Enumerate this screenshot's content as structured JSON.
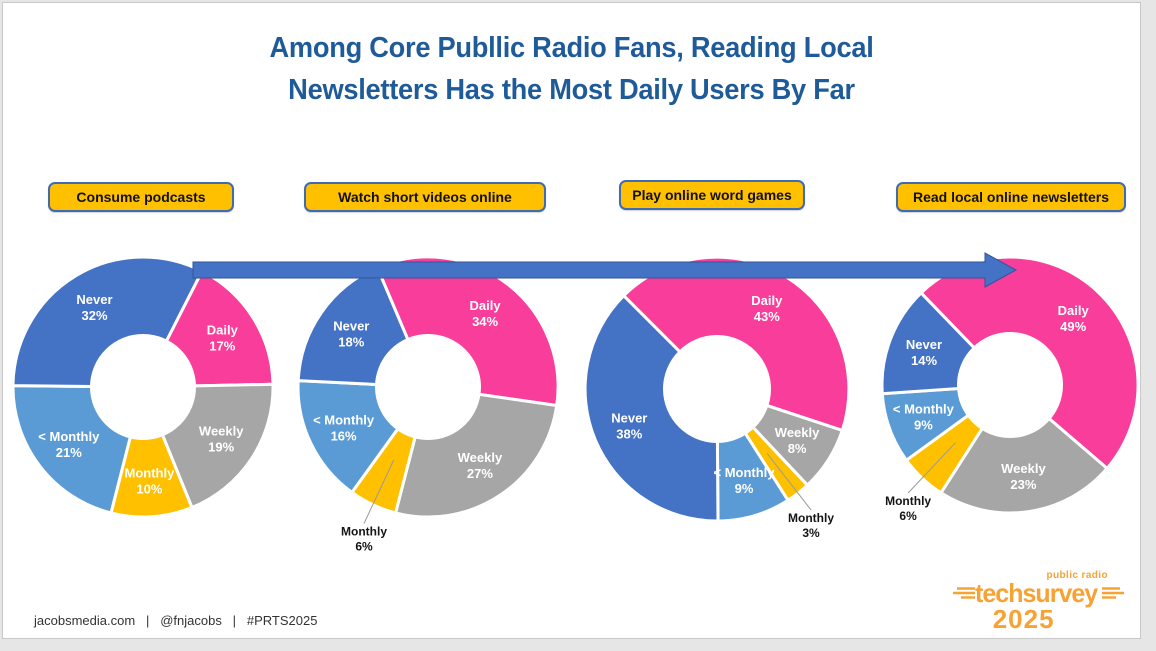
{
  "title": {
    "line1": "Among Core Publlic Radio Fans, Reading Local",
    "line2": "Newsletters Has the Most Daily Users By Far",
    "color": "#1F5B99"
  },
  "footer": {
    "text": "jacobsmedia.com   |   @fnjacobs   |   #PRTS2025"
  },
  "logo": {
    "tagline": "public radio",
    "brand": "techsurvey",
    "year": "2025",
    "color": "#F7A234"
  },
  "chart_data": {
    "type": "pie",
    "subtype": "donut",
    "legend_position": "none",
    "grid": false,
    "palette": {
      "Daily": "#F83E9A",
      "Weekly": "#A6A6A6",
      "Monthly": "#FFC000",
      "< Monthly": "#5B9BD5",
      "Never": "#4472C4"
    },
    "charts": [
      {
        "title": "Consume podcasts",
        "start_angle": 27,
        "slices": [
          {
            "label": "Daily",
            "pct": 17
          },
          {
            "label": "Weekly",
            "pct": 19
          },
          {
            "label": "Monthly",
            "pct": 10
          },
          {
            "label": "< Monthly",
            "pct": 21
          },
          {
            "label": "Never",
            "pct": 32
          }
        ]
      },
      {
        "title": "Watch short videos online",
        "start_angle": 337,
        "slices": [
          {
            "label": "Daily",
            "pct": 34
          },
          {
            "label": "Weekly",
            "pct": 27
          },
          {
            "label": "Monthly",
            "pct": 6,
            "label_outside": true
          },
          {
            "label": "< Monthly",
            "pct": 16
          },
          {
            "label": "Never",
            "pct": 18
          }
        ]
      },
      {
        "title": "Play online word games",
        "start_angle": 315,
        "slices": [
          {
            "label": "Daily",
            "pct": 43
          },
          {
            "label": "Weekly",
            "pct": 8
          },
          {
            "label": "Monthly",
            "pct": 3,
            "label_outside": true
          },
          {
            "label": "< Monthly",
            "pct": 9
          },
          {
            "label": "Never",
            "pct": 38
          }
        ]
      },
      {
        "title": "Read local online newsletters",
        "start_angle": 316,
        "slices": [
          {
            "label": "Daily",
            "pct": 49
          },
          {
            "label": "Weekly",
            "pct": 23
          },
          {
            "label": "Monthly",
            "pct": 6,
            "label_outside": true
          },
          {
            "label": "< Monthly",
            "pct": 9
          },
          {
            "label": "Never",
            "pct": 14
          }
        ]
      }
    ],
    "annotations": {
      "trend_arrow": {
        "direction": "right",
        "color": "#4472C4",
        "border": "#2F5597"
      }
    }
  }
}
